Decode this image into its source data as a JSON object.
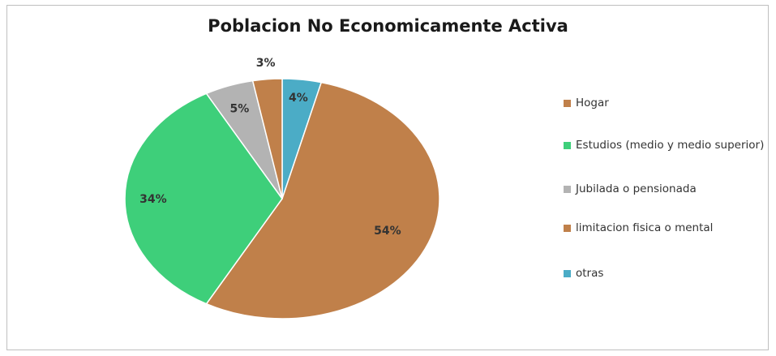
{
  "chart_data": {
    "type": "pie",
    "title": "Poblacion No Economicamente Activa",
    "slices": [
      {
        "label": "otras",
        "value": 4,
        "display": "4%",
        "color": "#4bacc6"
      },
      {
        "label": "Hogar",
        "value": 54,
        "display": "54%",
        "color": "#c0804a"
      },
      {
        "label": "Estudios (medio y medio superior)",
        "value": 34,
        "display": "34%",
        "color": "#3ecf7a"
      },
      {
        "label": "Jubilada o pensionada",
        "value": 5,
        "display": "5%",
        "color": "#b3b3b3"
      },
      {
        "label": "limitacion fisica o mental",
        "value": 3,
        "display": "3%",
        "color": "#c0804a"
      }
    ],
    "legend": [
      {
        "label": "Hogar",
        "color": "#c0804a"
      },
      {
        "label": "Estudios (medio y medio superior)",
        "color": "#3ecf7a"
      },
      {
        "label": "Jubilada o pensionada",
        "color": "#b3b3b3"
      },
      {
        "label": "limitacion fisica o mental",
        "color": "#c0804a"
      },
      {
        "label": "otras",
        "color": "#4bacc6"
      }
    ],
    "legend_position": "right"
  }
}
